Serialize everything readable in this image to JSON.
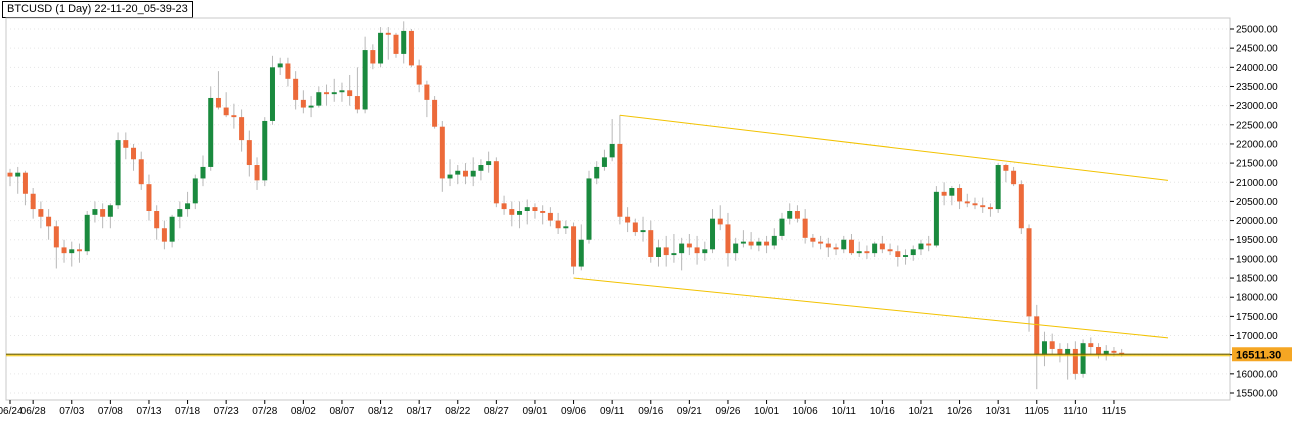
{
  "title": "BTCUSD (1 Day) 22-11-20_05-39-23",
  "colors": {
    "bull": "#1a8a3e",
    "bear": "#ec6a3a",
    "wick": "#b8b8b8",
    "channel": "#f2c200",
    "level_line": "#7a6a00",
    "price_tag": "#f5a623",
    "grid": "#e6e6e6"
  },
  "chart_data": {
    "type": "candlestick",
    "symbol": "BTCUSD",
    "timeframe": "1 Day",
    "ylim": [
      15450,
      25250
    ],
    "y_ticks": [
      "15500.00",
      "16000.00",
      "16500.00",
      "17000.00",
      "17500.00",
      "18000.00",
      "18500.00",
      "19000.00",
      "19500.00",
      "20000.00",
      "20500.00",
      "21000.00",
      "21500.00",
      "22000.00",
      "22500.00",
      "23000.00",
      "23500.00",
      "24000.00",
      "24500.00",
      "25000.00"
    ],
    "x_ticks": [
      {
        "i": 0,
        "label": "06/24"
      },
      {
        "i": 3,
        "label": "06/28"
      },
      {
        "i": 8,
        "label": "07/03"
      },
      {
        "i": 13,
        "label": "07/08"
      },
      {
        "i": 18,
        "label": "07/13"
      },
      {
        "i": 23,
        "label": "07/18"
      },
      {
        "i": 28,
        "label": "07/23"
      },
      {
        "i": 33,
        "label": "07/28"
      },
      {
        "i": 38,
        "label": "08/02"
      },
      {
        "i": 43,
        "label": "08/07"
      },
      {
        "i": 48,
        "label": "08/12"
      },
      {
        "i": 53,
        "label": "08/17"
      },
      {
        "i": 58,
        "label": "08/22"
      },
      {
        "i": 63,
        "label": "08/27"
      },
      {
        "i": 68,
        "label": "09/01"
      },
      {
        "i": 73,
        "label": "09/06"
      },
      {
        "i": 78,
        "label": "09/11"
      },
      {
        "i": 83,
        "label": "09/16"
      },
      {
        "i": 88,
        "label": "09/21"
      },
      {
        "i": 93,
        "label": "09/26"
      },
      {
        "i": 98,
        "label": "10/01"
      },
      {
        "i": 103,
        "label": "10/06"
      },
      {
        "i": 108,
        "label": "10/11"
      },
      {
        "i": 113,
        "label": "10/16"
      },
      {
        "i": 118,
        "label": "10/21"
      },
      {
        "i": 123,
        "label": "10/26"
      },
      {
        "i": 128,
        "label": "10/31"
      },
      {
        "i": 133,
        "label": "11/05"
      },
      {
        "i": 138,
        "label": "11/10"
      },
      {
        "i": 143,
        "label": "11/15"
      }
    ],
    "candles": [
      [
        21250,
        21350,
        20900,
        21150
      ],
      [
        21150,
        21400,
        20700,
        21250
      ],
      [
        21250,
        21300,
        20400,
        20700
      ],
      [
        20700,
        20850,
        20050,
        20300
      ],
      [
        20300,
        20500,
        19800,
        20100
      ],
      [
        20100,
        20300,
        19500,
        19850
      ],
      [
        19850,
        20000,
        18750,
        19300
      ],
      [
        19300,
        19500,
        18900,
        19150
      ],
      [
        19150,
        19450,
        18800,
        19250
      ],
      [
        19250,
        19400,
        18900,
        19200
      ],
      [
        19200,
        20250,
        19100,
        20150
      ],
      [
        20150,
        20500,
        19950,
        20300
      ],
      [
        20300,
        20450,
        19800,
        20100
      ],
      [
        20100,
        20450,
        19800,
        20400
      ],
      [
        20400,
        22300,
        20300,
        22100
      ],
      [
        22100,
        22300,
        21600,
        21900
      ],
      [
        21900,
        22000,
        21300,
        21600
      ],
      [
        21600,
        21800,
        20800,
        20950
      ],
      [
        20950,
        21200,
        20000,
        20250
      ],
      [
        20250,
        20400,
        19500,
        19800
      ],
      [
        19800,
        20000,
        19250,
        19450
      ],
      [
        19450,
        20150,
        19300,
        20100
      ],
      [
        20100,
        20500,
        19800,
        20300
      ],
      [
        20300,
        20750,
        20100,
        20450
      ],
      [
        20450,
        21200,
        20300,
        21100
      ],
      [
        21100,
        21700,
        20900,
        21400
      ],
      [
        21400,
        23500,
        21300,
        23200
      ],
      [
        23200,
        23900,
        22900,
        22950
      ],
      [
        22950,
        23350,
        22700,
        22750
      ],
      [
        22750,
        23050,
        22400,
        22700
      ],
      [
        22700,
        22900,
        21800,
        22100
      ],
      [
        22100,
        22350,
        21150,
        21450
      ],
      [
        21450,
        21650,
        20800,
        21050
      ],
      [
        21050,
        22700,
        20900,
        22600
      ],
      [
        22600,
        24300,
        22500,
        24000
      ],
      [
        24000,
        24250,
        23800,
        24100
      ],
      [
        24100,
        24250,
        23500,
        23700
      ],
      [
        23700,
        23900,
        22900,
        23150
      ],
      [
        23150,
        23400,
        22800,
        22950
      ],
      [
        22950,
        23250,
        22700,
        23000
      ],
      [
        23000,
        23500,
        22950,
        23350
      ],
      [
        23350,
        23550,
        23000,
        23300
      ],
      [
        23300,
        23700,
        23100,
        23350
      ],
      [
        23350,
        23600,
        23100,
        23400
      ],
      [
        23400,
        23800,
        23000,
        23250
      ],
      [
        23250,
        24000,
        22800,
        22900
      ],
      [
        22900,
        24800,
        22800,
        24450
      ],
      [
        24450,
        24600,
        23950,
        24100
      ],
      [
        24100,
        25050,
        24000,
        24900
      ],
      [
        24900,
        25050,
        24200,
        24850
      ],
      [
        24850,
        24900,
        24250,
        24350
      ],
      [
        24350,
        25200,
        24100,
        24950
      ],
      [
        24950,
        25000,
        24000,
        24050
      ],
      [
        24050,
        24200,
        23350,
        23550
      ],
      [
        23550,
        23650,
        22700,
        23150
      ],
      [
        23150,
        23250,
        22400,
        22450
      ],
      [
        22450,
        22600,
        20750,
        21100
      ],
      [
        21100,
        21600,
        20900,
        21200
      ],
      [
        21200,
        21450,
        20950,
        21300
      ],
      [
        21300,
        21500,
        20950,
        21150
      ],
      [
        21150,
        21650,
        20900,
        21300
      ],
      [
        21300,
        21600,
        21050,
        21450
      ],
      [
        21450,
        21800,
        21250,
        21550
      ],
      [
        21550,
        21650,
        20350,
        20450
      ],
      [
        20450,
        20650,
        20150,
        20300
      ],
      [
        20300,
        20500,
        19850,
        20150
      ],
      [
        20150,
        20500,
        19800,
        20250
      ],
      [
        20250,
        20550,
        19900,
        20350
      ],
      [
        20350,
        20450,
        20050,
        20250
      ],
      [
        20250,
        20400,
        19900,
        20200
      ],
      [
        20200,
        20350,
        19850,
        20000
      ],
      [
        20000,
        20200,
        19650,
        19800
      ],
      [
        19800,
        20000,
        19650,
        19850
      ],
      [
        19850,
        19950,
        18600,
        18800
      ],
      [
        18800,
        19900,
        18700,
        19500
      ],
      [
        19500,
        21300,
        19400,
        21100
      ],
      [
        21100,
        21550,
        20950,
        21400
      ],
      [
        21400,
        21850,
        21300,
        21650
      ],
      [
        21650,
        22650,
        21550,
        22000
      ],
      [
        22000,
        22750,
        19900,
        20100
      ],
      [
        20100,
        20350,
        19700,
        19950
      ],
      [
        19950,
        20050,
        19600,
        19700
      ],
      [
        19700,
        20100,
        19450,
        19750
      ],
      [
        19750,
        20000,
        18900,
        19050
      ],
      [
        19050,
        19500,
        18800,
        19300
      ],
      [
        19300,
        19600,
        18800,
        19100
      ],
      [
        19100,
        19650,
        18900,
        19150
      ],
      [
        19150,
        19550,
        18700,
        19400
      ],
      [
        19400,
        19650,
        19100,
        19300
      ],
      [
        19300,
        19600,
        18850,
        19150
      ],
      [
        19150,
        19450,
        18950,
        19250
      ],
      [
        19250,
        20300,
        19150,
        20050
      ],
      [
        20050,
        20400,
        19750,
        19900
      ],
      [
        19900,
        20200,
        18800,
        19150
      ],
      [
        19150,
        19550,
        18950,
        19400
      ],
      [
        19400,
        19750,
        19300,
        19450
      ],
      [
        19450,
        19700,
        19250,
        19350
      ],
      [
        19350,
        19550,
        19200,
        19450
      ],
      [
        19450,
        19600,
        19150,
        19350
      ],
      [
        19350,
        19800,
        19250,
        19600
      ],
      [
        19600,
        20200,
        19500,
        20050
      ],
      [
        20050,
        20450,
        19900,
        20250
      ],
      [
        20250,
        20400,
        19950,
        20050
      ],
      [
        20050,
        20300,
        19400,
        19550
      ],
      [
        19550,
        19650,
        19300,
        19450
      ],
      [
        19450,
        19600,
        19250,
        19400
      ],
      [
        19400,
        19550,
        19050,
        19300
      ],
      [
        19300,
        19400,
        19100,
        19250
      ],
      [
        19250,
        19600,
        19150,
        19500
      ],
      [
        19500,
        19650,
        19100,
        19150
      ],
      [
        19150,
        19450,
        19050,
        19200
      ],
      [
        19200,
        19350,
        19000,
        19150
      ],
      [
        19150,
        19450,
        19050,
        19400
      ],
      [
        19400,
        19600,
        19150,
        19250
      ],
      [
        19250,
        19400,
        19100,
        19200
      ],
      [
        19200,
        19350,
        18800,
        19050
      ],
      [
        19050,
        19250,
        18850,
        19100
      ],
      [
        19100,
        19350,
        18950,
        19250
      ],
      [
        19250,
        19500,
        19100,
        19400
      ],
      [
        19400,
        19600,
        19200,
        19350
      ],
      [
        19350,
        20900,
        19300,
        20750
      ],
      [
        20750,
        21000,
        20400,
        20650
      ],
      [
        20650,
        20900,
        20400,
        20850
      ],
      [
        20850,
        20950,
        20300,
        20500
      ],
      [
        20500,
        20700,
        20350,
        20450
      ],
      [
        20450,
        20600,
        20300,
        20400
      ],
      [
        20400,
        20600,
        20200,
        20350
      ],
      [
        20350,
        20450,
        20100,
        20300
      ],
      [
        20300,
        21500,
        20200,
        21450
      ],
      [
        21450,
        21480,
        21000,
        21300
      ],
      [
        21300,
        21400,
        20900,
        20950
      ],
      [
        20950,
        21050,
        19650,
        19800
      ],
      [
        19800,
        19900,
        17100,
        17500
      ],
      [
        17500,
        17800,
        15600,
        16500
      ],
      [
        16500,
        17100,
        16200,
        16850
      ],
      [
        16850,
        17050,
        16500,
        16650
      ],
      [
        16650,
        16800,
        16300,
        16500
      ],
      [
        16500,
        16800,
        15850,
        16650
      ],
      [
        16650,
        16850,
        15850,
        16000
      ],
      [
        16000,
        16900,
        15900,
        16800
      ],
      [
        16800,
        16950,
        16500,
        16700
      ],
      [
        16700,
        16800,
        16400,
        16500
      ],
      [
        16500,
        16750,
        16350,
        16600
      ],
      [
        16600,
        16700,
        16450,
        16550
      ],
      [
        16550,
        16650,
        16450,
        16511
      ]
    ],
    "channel_upper": [
      [
        79,
        22750
      ],
      [
        150,
        21050
      ]
    ],
    "channel_lower": [
      [
        73,
        18500
      ],
      [
        150,
        16940
      ]
    ],
    "horizontal_level": 16511.3,
    "last_price_label": "16511.30"
  }
}
